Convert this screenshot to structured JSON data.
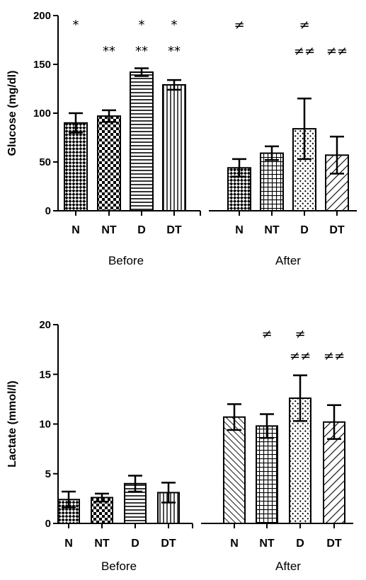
{
  "colors": {
    "axis": "#000000",
    "background": "#ffffff"
  },
  "chart_data": [
    {
      "type": "bar",
      "ylabel": "Glucose (mg/dl)",
      "ylim": [
        0,
        200
      ],
      "yticks": [
        0,
        50,
        100,
        150,
        200
      ],
      "groups": [
        {
          "label": "Before",
          "categories": [
            "N",
            "NT",
            "D",
            "DT"
          ]
        },
        {
          "label": "After",
          "categories": [
            "N",
            "NT",
            "D",
            "DT"
          ]
        }
      ],
      "series": [
        {
          "group": "Before",
          "category": "N",
          "value": 90,
          "error": 10,
          "pattern": "checker-diagonal",
          "marks": [
            "*"
          ]
        },
        {
          "group": "Before",
          "category": "NT",
          "value": 97,
          "error": 6,
          "pattern": "checker",
          "marks": [
            "**"
          ]
        },
        {
          "group": "Before",
          "category": "D",
          "value": 142,
          "error": 4,
          "pattern": "horizontal-lines",
          "marks": [
            "*",
            "**"
          ]
        },
        {
          "group": "Before",
          "category": "DT",
          "value": 129,
          "error": 5,
          "pattern": "vertical-lines",
          "marks": [
            "*",
            "**"
          ]
        },
        {
          "group": "After",
          "category": "N",
          "value": 44,
          "error": 9,
          "pattern": "checker-diagonal",
          "marks": [
            "≠"
          ]
        },
        {
          "group": "After",
          "category": "NT",
          "value": 59,
          "error": 7,
          "pattern": "grid",
          "marks": []
        },
        {
          "group": "After",
          "category": "D",
          "value": 84,
          "error": 31,
          "pattern": "dots",
          "marks": [
            "≠",
            "≠≠"
          ]
        },
        {
          "group": "After",
          "category": "DT",
          "value": 57,
          "error": 19,
          "pattern": "diagonal-lines",
          "marks": [
            "≠≠"
          ]
        }
      ]
    },
    {
      "type": "bar",
      "ylabel": "Lactate (mmol/l)",
      "ylim": [
        0,
        20
      ],
      "yticks": [
        0,
        5,
        10,
        15,
        20
      ],
      "groups": [
        {
          "label": "Before",
          "categories": [
            "N",
            "NT",
            "D",
            "DT"
          ]
        },
        {
          "label": "After",
          "categories": [
            "N",
            "NT",
            "D",
            "DT"
          ]
        }
      ],
      "series": [
        {
          "group": "Before",
          "category": "N",
          "value": 2.4,
          "error": 0.8,
          "pattern": "checker-diagonal",
          "marks": []
        },
        {
          "group": "Before",
          "category": "NT",
          "value": 2.6,
          "error": 0.4,
          "pattern": "checker",
          "marks": []
        },
        {
          "group": "Before",
          "category": "D",
          "value": 4.0,
          "error": 0.8,
          "pattern": "horizontal-lines",
          "marks": []
        },
        {
          "group": "Before",
          "category": "DT",
          "value": 3.1,
          "error": 1.0,
          "pattern": "vertical-lines",
          "marks": []
        },
        {
          "group": "After",
          "category": "N",
          "value": 10.7,
          "error": 1.3,
          "pattern": "diagonal-lines-back",
          "marks": []
        },
        {
          "group": "After",
          "category": "NT",
          "value": 9.8,
          "error": 1.2,
          "pattern": "grid",
          "marks": [
            "≠"
          ]
        },
        {
          "group": "After",
          "category": "D",
          "value": 12.6,
          "error": 2.3,
          "pattern": "dots",
          "marks": [
            "≠",
            "≠≠"
          ]
        },
        {
          "group": "After",
          "category": "DT",
          "value": 10.2,
          "error": 1.7,
          "pattern": "diagonal-lines",
          "marks": [
            "≠≠"
          ]
        }
      ]
    }
  ]
}
